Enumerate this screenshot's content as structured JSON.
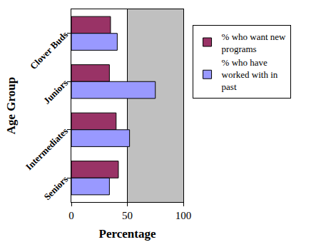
{
  "chart_data": {
    "type": "bar",
    "orientation": "horizontal",
    "categories": [
      "Clover Buds",
      "Juniors",
      "Intermediates",
      "Seniors"
    ],
    "series": [
      {
        "name": "% who want new programs",
        "color": "#993366",
        "values": [
          35,
          34,
          40,
          42
        ]
      },
      {
        "name": "% who have worked with in past",
        "color": "#9999ff",
        "values": [
          41,
          75,
          52,
          34
        ]
      }
    ],
    "x_label": "Percentage",
    "y_label": "Age Group",
    "xlim": [
      0,
      100
    ],
    "xticks": [
      0,
      50,
      100
    ],
    "grid": true,
    "legend": "right"
  }
}
